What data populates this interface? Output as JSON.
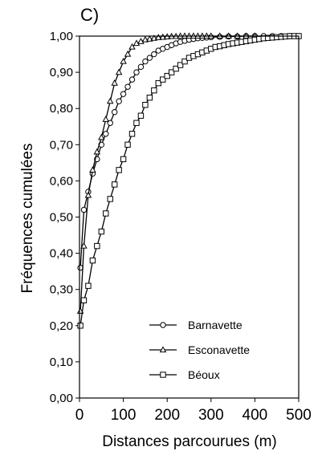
{
  "chart_data": {
    "type": "line",
    "panel_label": "C)",
    "title": "",
    "xlabel": "Distances parcourues (m)",
    "ylabel": "Fréquences cumulées",
    "xlim": [
      0,
      500
    ],
    "ylim": [
      0,
      1
    ],
    "x_ticks": [
      "0",
      "100",
      "200",
      "300",
      "400",
      "500"
    ],
    "y_ticks": [
      "0,00",
      "0,10",
      "0,20",
      "0,30",
      "0,40",
      "0,50",
      "0,60",
      "0,70",
      "0,80",
      "0,90",
      "1,00"
    ],
    "grid": false,
    "legend_position": "bottom-center",
    "series": [
      {
        "name": "Barnavette",
        "marker": "circle",
        "x": [
          2,
          10,
          20,
          30,
          40,
          50,
          60,
          70,
          80,
          90,
          100,
          110,
          120,
          130,
          140,
          150,
          160,
          170,
          180,
          190,
          200,
          210,
          220,
          230,
          240,
          250,
          260,
          270,
          280,
          290,
          300,
          320,
          340,
          360,
          380,
          400,
          420,
          440,
          460,
          480,
          500
        ],
        "y": [
          0.36,
          0.52,
          0.57,
          0.62,
          0.66,
          0.7,
          0.73,
          0.76,
          0.79,
          0.82,
          0.84,
          0.86,
          0.88,
          0.9,
          0.915,
          0.93,
          0.94,
          0.95,
          0.96,
          0.965,
          0.97,
          0.975,
          0.98,
          0.984,
          0.987,
          0.99,
          0.992,
          0.994,
          0.995,
          0.996,
          0.997,
          0.998,
          0.999,
          0.999,
          1.0,
          1.0,
          1.0,
          1.0,
          1.0,
          1.0,
          1.0
        ]
      },
      {
        "name": "Esconavette",
        "marker": "triangle",
        "x": [
          2,
          10,
          20,
          30,
          40,
          50,
          60,
          70,
          80,
          90,
          100,
          110,
          120,
          130,
          140,
          150,
          160,
          170,
          180,
          190,
          200,
          210,
          220,
          230,
          240,
          250,
          260,
          270,
          280,
          290,
          300,
          320,
          340,
          360,
          380,
          400
        ],
        "y": [
          0.24,
          0.42,
          0.56,
          0.63,
          0.68,
          0.72,
          0.77,
          0.82,
          0.87,
          0.9,
          0.93,
          0.95,
          0.97,
          0.98,
          0.985,
          0.99,
          0.992,
          0.994,
          0.996,
          0.997,
          0.998,
          0.999,
          0.999,
          1.0,
          1.0,
          1.0,
          1.0,
          1.0,
          1.0,
          1.0,
          1.0,
          1.0,
          1.0,
          1.0,
          1.0,
          1.0
        ]
      },
      {
        "name": "Béoux",
        "marker": "square",
        "x": [
          2,
          10,
          20,
          30,
          40,
          50,
          60,
          70,
          80,
          90,
          100,
          110,
          120,
          130,
          140,
          150,
          160,
          170,
          180,
          190,
          200,
          210,
          220,
          230,
          240,
          250,
          260,
          270,
          280,
          290,
          300,
          310,
          320,
          330,
          340,
          350,
          360,
          370,
          380,
          390,
          400,
          410,
          420,
          430,
          440,
          450,
          460,
          470,
          480,
          490,
          500
        ],
        "y": [
          0.2,
          0.27,
          0.31,
          0.38,
          0.42,
          0.46,
          0.51,
          0.55,
          0.59,
          0.63,
          0.66,
          0.7,
          0.73,
          0.76,
          0.78,
          0.81,
          0.83,
          0.85,
          0.87,
          0.88,
          0.89,
          0.9,
          0.91,
          0.92,
          0.93,
          0.94,
          0.945,
          0.95,
          0.955,
          0.96,
          0.965,
          0.97,
          0.972,
          0.975,
          0.978,
          0.98,
          0.982,
          0.984,
          0.986,
          0.988,
          0.99,
          0.992,
          0.994,
          0.995,
          0.996,
          0.997,
          0.998,
          0.999,
          1.0,
          1.0,
          1.0
        ]
      }
    ]
  }
}
